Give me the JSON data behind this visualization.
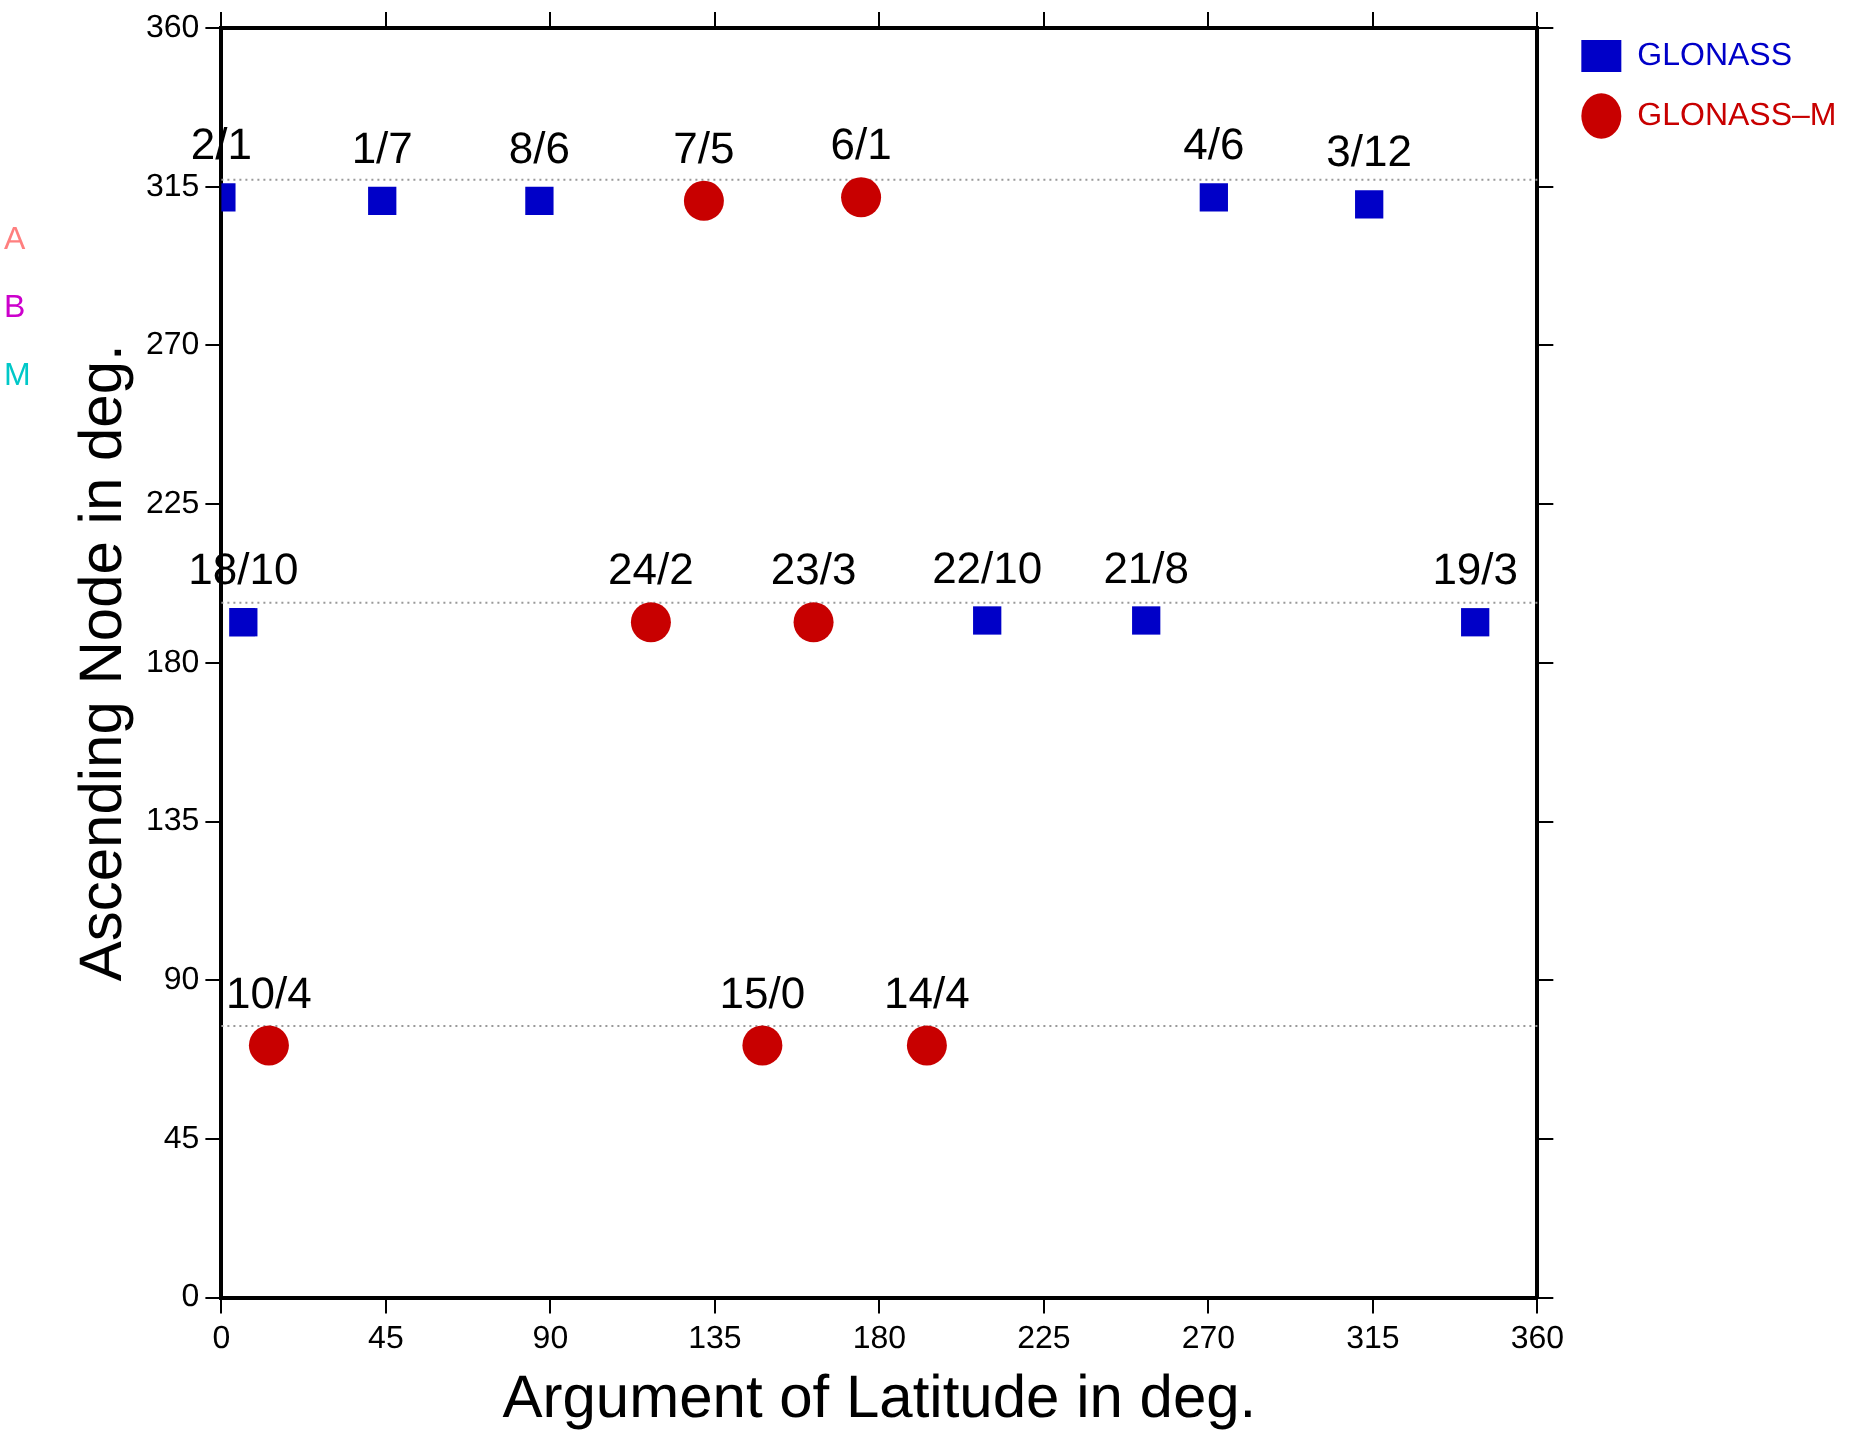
{
  "chart_data": {
    "type": "scatter",
    "xlabel": "Argument of Latitude in deg.",
    "ylabel": "Ascending Node in deg.",
    "xlim": [
      0,
      360
    ],
    "xticks": [
      0,
      45,
      90,
      135,
      180,
      225,
      270,
      315,
      360
    ],
    "ylim": [
      0,
      360
    ],
    "yticks": [
      0,
      45,
      90,
      135,
      180,
      225,
      270,
      315,
      360
    ],
    "grid": false,
    "legend": "top right",
    "series": [
      {
        "name": "GLONASS",
        "color": "#0000c8",
        "marker": "square",
        "x": [
          0,
          44,
          87,
          271.5,
          314,
          6,
          209.5,
          253,
          343
        ],
        "values": [
          312,
          311,
          311,
          312,
          310,
          191.5,
          192,
          192,
          191.5
        ]
      },
      {
        "name": "GLONASS–M",
        "color": "#c80000",
        "marker": "circle",
        "x": [
          132,
          175,
          117.5,
          162,
          13,
          148,
          193
        ],
        "values": [
          311,
          312,
          191.5,
          191.5,
          71.5,
          71.5,
          71.5
        ]
      }
    ],
    "ref_lines": [
      {
        "axis": "y",
        "value": 317,
        "color": "#999999",
        "line_style": "dotted"
      },
      {
        "axis": "y",
        "value": 197,
        "color": "#999999",
        "line_style": "dotted"
      },
      {
        "axis": "y",
        "value": 77,
        "color": "#999999",
        "line_style": "dotted"
      }
    ],
    "annotations": [
      {
        "text": "2/1",
        "x": 0,
        "y": 312
      },
      {
        "text": "1/7",
        "x": 44,
        "y": 311
      },
      {
        "text": "8/6",
        "x": 87,
        "y": 311
      },
      {
        "text": "4/6",
        "x": 271.5,
        "y": 312
      },
      {
        "text": "3/12",
        "x": 314,
        "y": 310
      },
      {
        "text": "18/10",
        "x": 6,
        "y": 191.5
      },
      {
        "text": "22/10",
        "x": 209.5,
        "y": 192
      },
      {
        "text": "21/8",
        "x": 253,
        "y": 192
      },
      {
        "text": "19/3",
        "x": 343,
        "y": 191.5
      },
      {
        "text": "7/5",
        "x": 132,
        "y": 311
      },
      {
        "text": "6/1",
        "x": 175,
        "y": 312
      },
      {
        "text": "24/2",
        "x": 117.5,
        "y": 191.5
      },
      {
        "text": "23/3",
        "x": 162,
        "y": 191.5
      },
      {
        "text": "10/4",
        "x": 13,
        "y": 71.5
      },
      {
        "text": "15/0",
        "x": 148,
        "y": 71.5
      },
      {
        "text": "14/4",
        "x": 193,
        "y": 71.5
      },
      "A",
      "B",
      "M"
    ]
  }
}
